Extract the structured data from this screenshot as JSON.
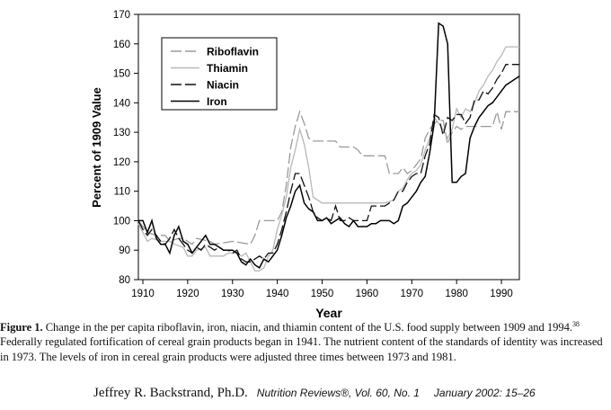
{
  "chart_data": {
    "type": "line",
    "title": "",
    "xlabel": "Year",
    "ylabel": "Percent of 1909 Value",
    "xlim": [
      1909,
      1994
    ],
    "ylim": [
      80,
      170
    ],
    "x_ticks": [
      1910,
      1920,
      1930,
      1940,
      1950,
      1960,
      1970,
      1980,
      1990
    ],
    "y_ticks": [
      80,
      90,
      100,
      110,
      120,
      130,
      140,
      150,
      160,
      170
    ],
    "grid": false,
    "legend_position": "top-left",
    "series": [
      {
        "name": "Riboflavin",
        "color": "#9a9a9a",
        "style": "dashed",
        "points": [
          [
            1909,
            100
          ],
          [
            1911,
            96
          ],
          [
            1913,
            95
          ],
          [
            1915,
            95
          ],
          [
            1916,
            93
          ],
          [
            1918,
            94
          ],
          [
            1919,
            94
          ],
          [
            1920,
            93
          ],
          [
            1921,
            92
          ],
          [
            1922,
            94
          ],
          [
            1925,
            93
          ],
          [
            1926,
            92
          ],
          [
            1930,
            93
          ],
          [
            1934,
            92
          ],
          [
            1935,
            95
          ],
          [
            1936,
            100
          ],
          [
            1940,
            100
          ],
          [
            1941,
            103
          ],
          [
            1942,
            112
          ],
          [
            1943,
            125
          ],
          [
            1944,
            132
          ],
          [
            1945,
            137
          ],
          [
            1946,
            133
          ],
          [
            1947,
            128
          ],
          [
            1948,
            127
          ],
          [
            1953,
            127
          ],
          [
            1954,
            125
          ],
          [
            1957,
            125
          ],
          [
            1958,
            124
          ],
          [
            1959,
            122
          ],
          [
            1964,
            122
          ],
          [
            1965,
            116
          ],
          [
            1967,
            116
          ],
          [
            1968,
            118
          ],
          [
            1969,
            116
          ],
          [
            1970,
            117
          ],
          [
            1971,
            119
          ],
          [
            1972,
            121
          ],
          [
            1973,
            128
          ],
          [
            1974,
            131
          ],
          [
            1975,
            133
          ],
          [
            1976,
            134
          ],
          [
            1977,
            134
          ],
          [
            1978,
            126
          ],
          [
            1979,
            130
          ],
          [
            1980,
            132
          ],
          [
            1981,
            131
          ],
          [
            1982,
            132
          ],
          [
            1988,
            132
          ],
          [
            1989,
            137
          ],
          [
            1990,
            131
          ],
          [
            1991,
            137
          ],
          [
            1994,
            137
          ]
        ]
      },
      {
        "name": "Thiamin",
        "color": "#b8b8b8",
        "style": "solid",
        "points": [
          [
            1909,
            99
          ],
          [
            1910,
            96
          ],
          [
            1911,
            93
          ],
          [
            1912,
            94
          ],
          [
            1914,
            93
          ],
          [
            1916,
            93
          ],
          [
            1917,
            92
          ],
          [
            1919,
            91
          ],
          [
            1920,
            88
          ],
          [
            1921,
            88
          ],
          [
            1922,
            90
          ],
          [
            1924,
            91
          ],
          [
            1925,
            88
          ],
          [
            1928,
            88
          ],
          [
            1929,
            89
          ],
          [
            1931,
            89
          ],
          [
            1932,
            88
          ],
          [
            1933,
            89
          ],
          [
            1935,
            83
          ],
          [
            1936,
            83
          ],
          [
            1937,
            84
          ],
          [
            1938,
            88
          ],
          [
            1939,
            90
          ],
          [
            1940,
            97
          ],
          [
            1941,
            102
          ],
          [
            1942,
            108
          ],
          [
            1943,
            118
          ],
          [
            1944,
            124
          ],
          [
            1945,
            131
          ],
          [
            1946,
            126
          ],
          [
            1947,
            118
          ],
          [
            1948,
            108
          ],
          [
            1950,
            106
          ],
          [
            1956,
            106
          ],
          [
            1957,
            106
          ],
          [
            1960,
            106
          ],
          [
            1963,
            106
          ],
          [
            1964,
            106
          ],
          [
            1966,
            107
          ],
          [
            1967,
            110
          ],
          [
            1968,
            111
          ],
          [
            1969,
            114
          ],
          [
            1970,
            116
          ],
          [
            1971,
            117
          ],
          [
            1972,
            119
          ],
          [
            1973,
            124
          ],
          [
            1974,
            128
          ],
          [
            1975,
            135
          ],
          [
            1976,
            133
          ],
          [
            1977,
            131
          ],
          [
            1978,
            128
          ],
          [
            1979,
            131
          ],
          [
            1980,
            138
          ],
          [
            1981,
            135
          ],
          [
            1982,
            138
          ],
          [
            1983,
            137
          ],
          [
            1984,
            140
          ],
          [
            1985,
            144
          ],
          [
            1986,
            146
          ],
          [
            1987,
            149
          ],
          [
            1988,
            151
          ],
          [
            1989,
            154
          ],
          [
            1990,
            156
          ],
          [
            1991,
            159
          ],
          [
            1994,
            159
          ]
        ]
      },
      {
        "name": "Niacin",
        "color": "#111111",
        "style": "dashed",
        "points": [
          [
            1909,
            100
          ],
          [
            1910,
            97
          ],
          [
            1911,
            95
          ],
          [
            1912,
            97
          ],
          [
            1913,
            95
          ],
          [
            1914,
            93
          ],
          [
            1915,
            92
          ],
          [
            1916,
            94
          ],
          [
            1917,
            97
          ],
          [
            1918,
            94
          ],
          [
            1919,
            92
          ],
          [
            1920,
            90
          ],
          [
            1921,
            89
          ],
          [
            1922,
            91
          ],
          [
            1923,
            90
          ],
          [
            1924,
            92
          ],
          [
            1925,
            91
          ],
          [
            1926,
            90
          ],
          [
            1927,
            91
          ],
          [
            1928,
            90
          ],
          [
            1929,
            90
          ],
          [
            1930,
            89
          ],
          [
            1931,
            90
          ],
          [
            1932,
            87
          ],
          [
            1933,
            86
          ],
          [
            1934,
            86
          ],
          [
            1935,
            87
          ],
          [
            1936,
            88
          ],
          [
            1937,
            87
          ],
          [
            1938,
            89
          ],
          [
            1939,
            89
          ],
          [
            1940,
            92
          ],
          [
            1941,
            97
          ],
          [
            1942,
            103
          ],
          [
            1943,
            110
          ],
          [
            1944,
            116
          ],
          [
            1945,
            116
          ],
          [
            1946,
            112
          ],
          [
            1947,
            108
          ],
          [
            1948,
            103
          ],
          [
            1949,
            101
          ],
          [
            1950,
            100
          ],
          [
            1951,
            101
          ],
          [
            1952,
            100
          ],
          [
            1953,
            105
          ],
          [
            1954,
            100
          ],
          [
            1955,
            100
          ],
          [
            1956,
            101
          ],
          [
            1957,
            100
          ],
          [
            1958,
            100
          ],
          [
            1960,
            100
          ],
          [
            1961,
            105
          ],
          [
            1962,
            105
          ],
          [
            1963,
            105
          ],
          [
            1964,
            105
          ],
          [
            1965,
            106
          ],
          [
            1966,
            107
          ],
          [
            1967,
            110
          ],
          [
            1968,
            110
          ],
          [
            1969,
            113
          ],
          [
            1970,
            115
          ],
          [
            1971,
            116
          ],
          [
            1972,
            116
          ],
          [
            1973,
            122
          ],
          [
            1974,
            126
          ],
          [
            1975,
            136
          ],
          [
            1976,
            135
          ],
          [
            1977,
            129
          ],
          [
            1978,
            135
          ],
          [
            1979,
            134
          ],
          [
            1980,
            136
          ],
          [
            1981,
            136
          ],
          [
            1982,
            133
          ],
          [
            1983,
            135
          ],
          [
            1984,
            141
          ],
          [
            1985,
            141
          ],
          [
            1986,
            144
          ],
          [
            1987,
            143
          ],
          [
            1988,
            145
          ],
          [
            1989,
            148
          ],
          [
            1990,
            150
          ],
          [
            1991,
            153
          ],
          [
            1994,
            153
          ]
        ]
      },
      {
        "name": "Iron",
        "color": "#000000",
        "style": "solid",
        "points": [
          [
            1909,
            100
          ],
          [
            1910,
            100
          ],
          [
            1911,
            96
          ],
          [
            1912,
            100
          ],
          [
            1913,
            94
          ],
          [
            1914,
            92
          ],
          [
            1915,
            92
          ],
          [
            1916,
            89
          ],
          [
            1917,
            95
          ],
          [
            1918,
            98
          ],
          [
            1919,
            93
          ],
          [
            1920,
            92
          ],
          [
            1921,
            89
          ],
          [
            1922,
            91
          ],
          [
            1923,
            93
          ],
          [
            1924,
            95
          ],
          [
            1925,
            92
          ],
          [
            1926,
            92
          ],
          [
            1927,
            91
          ],
          [
            1928,
            90
          ],
          [
            1930,
            90
          ],
          [
            1931,
            89
          ],
          [
            1932,
            86
          ],
          [
            1933,
            85
          ],
          [
            1934,
            87
          ],
          [
            1935,
            85
          ],
          [
            1936,
            84
          ],
          [
            1937,
            87
          ],
          [
            1938,
            86
          ],
          [
            1939,
            88
          ],
          [
            1940,
            90
          ],
          [
            1941,
            95
          ],
          [
            1942,
            101
          ],
          [
            1943,
            105
          ],
          [
            1944,
            110
          ],
          [
            1945,
            112
          ],
          [
            1946,
            106
          ],
          [
            1947,
            104
          ],
          [
            1948,
            103
          ],
          [
            1949,
            100
          ],
          [
            1950,
            100
          ],
          [
            1951,
            101
          ],
          [
            1952,
            99
          ],
          [
            1953,
            100
          ],
          [
            1954,
            101
          ],
          [
            1955,
            99
          ],
          [
            1956,
            98
          ],
          [
            1957,
            100
          ],
          [
            1958,
            98
          ],
          [
            1960,
            98
          ],
          [
            1961,
            99
          ],
          [
            1962,
            99
          ],
          [
            1963,
            100
          ],
          [
            1964,
            100
          ],
          [
            1965,
            100
          ],
          [
            1966,
            99
          ],
          [
            1967,
            100
          ],
          [
            1968,
            105
          ],
          [
            1969,
            106
          ],
          [
            1970,
            108
          ],
          [
            1971,
            110
          ],
          [
            1972,
            113
          ],
          [
            1973,
            115
          ],
          [
            1974,
            123
          ],
          [
            1975,
            133
          ],
          [
            1976,
            167
          ],
          [
            1977,
            166
          ],
          [
            1978,
            160
          ],
          [
            1979,
            113
          ],
          [
            1980,
            113
          ],
          [
            1981,
            115
          ],
          [
            1982,
            116
          ],
          [
            1983,
            128
          ],
          [
            1984,
            132
          ],
          [
            1985,
            135
          ],
          [
            1986,
            137
          ],
          [
            1987,
            139
          ],
          [
            1988,
            140
          ],
          [
            1989,
            142
          ],
          [
            1990,
            144
          ],
          [
            1991,
            146
          ],
          [
            1992,
            147
          ],
          [
            1994,
            149
          ]
        ]
      }
    ]
  },
  "caption": {
    "label": "Figure 1.",
    "text": "Change in the per capita riboflavin, iron, niacin, and thiamin content of the U.S. food supply between 1909 and 1994.",
    "ref": "38",
    "text2": "Federally regulated fortification of cereal grain products began in 1941. The nutrient content of the standards of identity was increased in 1973. The levels of iron in cereal grain products were adjusted three times between 1973 and 1981."
  },
  "byline": {
    "author": "Jeffrey R. Backstrand, Ph.D.",
    "journal": "Nutrition Reviews®, Vol. 60, No. 1",
    "date": "January 2002: 15–26"
  }
}
